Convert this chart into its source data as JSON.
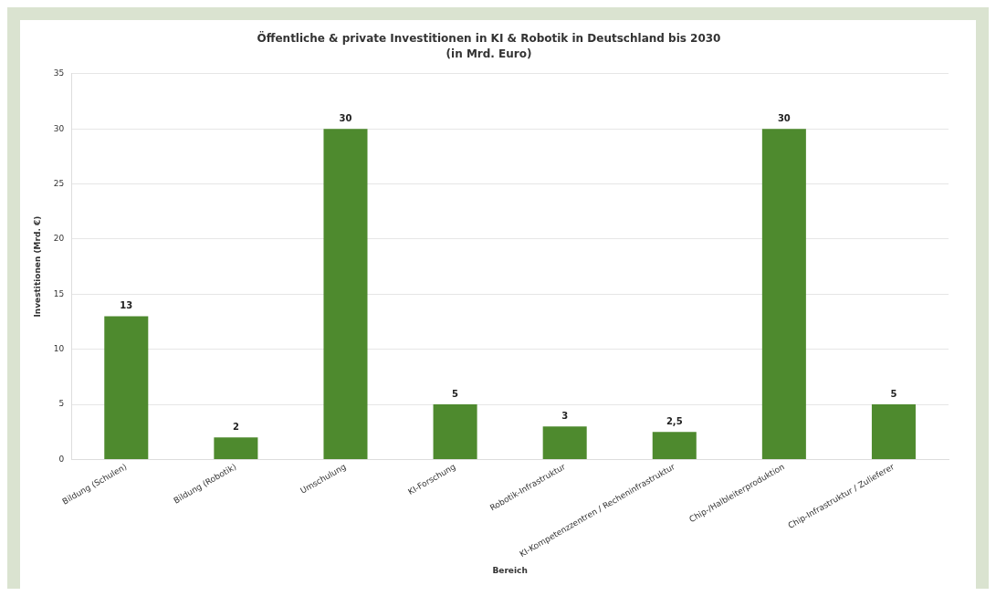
{
  "chart_data": {
    "type": "bar",
    "title": "Öffentliche & private Investitionen in KI & Robotik in Deutschland bis 2030",
    "subtitle": "(in Mrd. Euro)",
    "xlabel": "Bereich",
    "ylabel": "Investitionen (Mrd. €)",
    "categories": [
      "Bildung (Schulen)",
      "Bildung (Robotik)",
      "Umschulung",
      "KI-Forschung",
      "Robotik-Infrastruktur",
      "KI-Kompetenzzentren / Recheninfrastruktur",
      "Chip-/Halbleiterproduktion",
      "Chip-Infrastruktur / Zulieferer"
    ],
    "values": [
      13,
      2,
      30,
      5,
      3,
      2.5,
      30,
      5
    ],
    "value_labels": [
      "13",
      "2",
      "30",
      "5",
      "3",
      "2,5",
      "30",
      "5"
    ],
    "color": "#4e8a2e",
    "ylim": [
      0,
      35
    ],
    "yticks": [
      0,
      5,
      10,
      15,
      20,
      25,
      30,
      35
    ],
    "grid": "y",
    "legend": false
  }
}
